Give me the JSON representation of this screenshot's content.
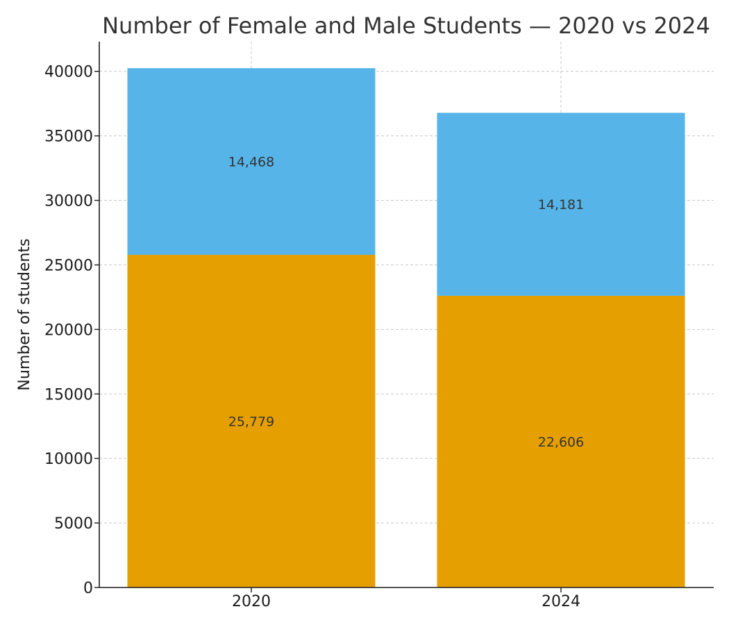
{
  "chart_data": {
    "type": "bar",
    "stacked": true,
    "title": "Number of Female and Male Students — 2020 vs 2024",
    "ylabel": "Number of students",
    "xlabel": "",
    "categories": [
      "2020",
      "2024"
    ],
    "ylim": [
      0,
      42300
    ],
    "yticks": [
      0,
      5000,
      10000,
      15000,
      20000,
      25000,
      30000,
      35000,
      40000
    ],
    "grid": true,
    "legend": "none",
    "series": [
      {
        "values": [
          25779,
          22606
        ],
        "labels": [
          "25,779",
          "22,606"
        ],
        "color": "#E69F00"
      },
      {
        "values": [
          14468,
          14181
        ],
        "labels": [
          "14,468",
          "14,181"
        ],
        "color": "#56B4E9"
      }
    ]
  }
}
